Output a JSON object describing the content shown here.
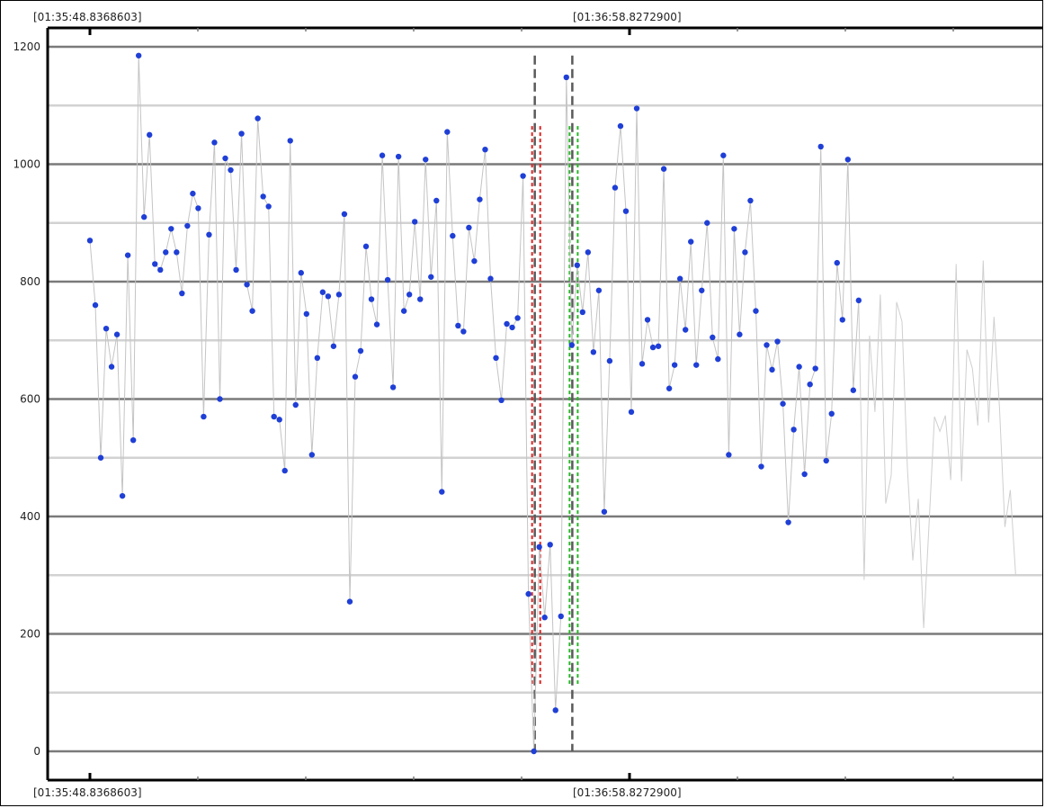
{
  "chart_data": {
    "type": "scatter",
    "title": "",
    "xlabel": "",
    "ylabel": "",
    "ylim": [
      0,
      1200
    ],
    "y_ticks": [
      0,
      200,
      400,
      600,
      800,
      1000,
      1200
    ],
    "grid": true,
    "time_labels": {
      "top_left": "[01:35:48.8368603]",
      "top_right": "[01:36:58.8272900]",
      "bottom_left": "[01:35:48.8368603]",
      "bottom_right": "[01:36:58.8272900]"
    },
    "colors": {
      "points": "#1f3fd6",
      "line": "#c4c4c4",
      "faded_line": "#cfcfcf",
      "marker_gray": "#5a5a5a",
      "marker_red": "#e02020",
      "marker_green": "#22b822",
      "grid_major": "#7a7a7a",
      "grid_minor": "#d2d2d2"
    },
    "series": [
      {
        "values": [
          870,
          760,
          500,
          720,
          655,
          710,
          435,
          845,
          530,
          1185,
          910,
          1050,
          830,
          820,
          850,
          890,
          850,
          780,
          895,
          950,
          925,
          570,
          880,
          1037,
          600,
          1010,
          990,
          820,
          1052,
          795,
          750,
          1078,
          945,
          928,
          570,
          565,
          478,
          1040,
          590,
          815,
          745,
          505,
          670,
          782,
          775,
          690,
          778,
          915,
          255,
          638,
          682,
          860,
          770,
          727,
          1015,
          803,
          620,
          1013,
          750,
          778,
          902,
          770,
          1008,
          808,
          938,
          442,
          1055,
          878,
          725,
          715,
          892,
          835,
          940,
          1025,
          805,
          670,
          598,
          728,
          722,
          738,
          980,
          268,
          0,
          348,
          228,
          352,
          70,
          230,
          1148,
          692,
          828,
          748,
          850,
          680,
          785,
          408,
          665,
          960,
          1065,
          920,
          578,
          1095,
          660,
          735,
          688,
          690,
          992,
          618,
          658,
          805,
          718,
          868,
          658,
          785,
          900,
          705,
          668,
          1015,
          505,
          890,
          710,
          850,
          938,
          750,
          485,
          692,
          650,
          698,
          592,
          390,
          548,
          655,
          472,
          625,
          652,
          1030,
          495,
          575,
          832,
          735,
          1008,
          615,
          768
        ]
      },
      {
        "values": [
          292,
          708,
          578,
          778,
          422,
          470,
          765,
          732,
          482,
          325,
          430,
          210,
          388,
          570,
          545,
          572,
          462,
          830,
          460,
          684,
          652,
          555,
          836,
          560,
          740,
          585,
          382,
          445,
          300
        ]
      }
    ],
    "vertical_markers": [
      {
        "color": "gray",
        "style": "dashed",
        "x_index": 82.17,
        "ymin": 0,
        "ymax": 1185
      },
      {
        "color": "gray",
        "style": "dashed",
        "x_index": 89.1,
        "ymin": 0,
        "ymax": 1185
      },
      {
        "color": "red",
        "style": "dotted",
        "x_index": 81.67,
        "ymin": 115,
        "ymax": 1065
      },
      {
        "color": "red",
        "style": "dotted",
        "x_index": 83.17,
        "ymin": 115,
        "ymax": 1065
      },
      {
        "color": "green",
        "style": "dotted",
        "x_index": 88.6,
        "ymin": 115,
        "ymax": 1065
      },
      {
        "color": "green",
        "style": "dotted",
        "x_index": 90.1,
        "ymin": 115,
        "ymax": 1065
      }
    ]
  }
}
